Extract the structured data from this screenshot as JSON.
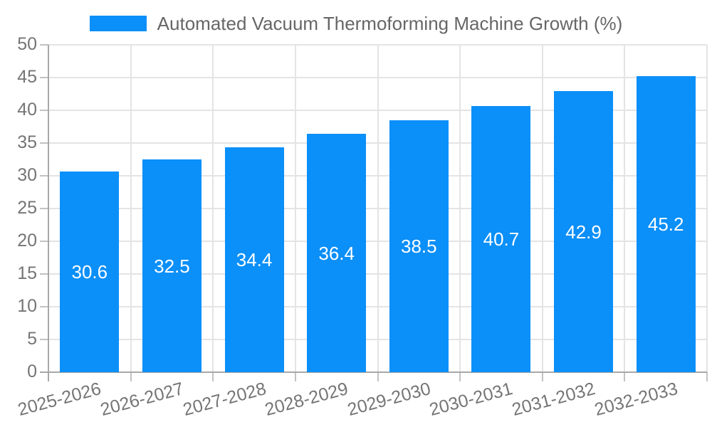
{
  "chart_data": {
    "type": "bar",
    "title": "Automated Vacuum Thermoforming Machine Growth (%)",
    "categories": [
      "2025-2026",
      "2026-2027",
      "2027-2028",
      "2028-2029",
      "2029-2030",
      "2030-2031",
      "2031-2032",
      "2032-2033"
    ],
    "values": [
      30.6,
      32.5,
      34.4,
      36.4,
      38.5,
      40.7,
      42.9,
      45.2
    ],
    "xlabel": "",
    "ylabel": "",
    "ylim": [
      0,
      50
    ],
    "ytick_step": 5,
    "grid": true,
    "legend_position": "top",
    "value_labels": [
      "30.6",
      "32.5",
      "34.4",
      "36.4",
      "38.5",
      "40.7",
      "42.9",
      "45.2"
    ],
    "ytick_labels": [
      "0",
      "5",
      "10",
      "15",
      "20",
      "25",
      "30",
      "35",
      "40",
      "45",
      "50"
    ]
  },
  "legend": {
    "label": "Automated Vacuum Thermoforming Machine Growth (%)"
  },
  "colors": {
    "bar": "#0b8ff8",
    "bar_value_text": "#ffffff",
    "grid": "#e4e4e4",
    "axis": "#a8a8a8",
    "tick": "#c2c2c2",
    "tick_text": "#757575",
    "legend_text": "#666666",
    "background": "#ffffff"
  }
}
